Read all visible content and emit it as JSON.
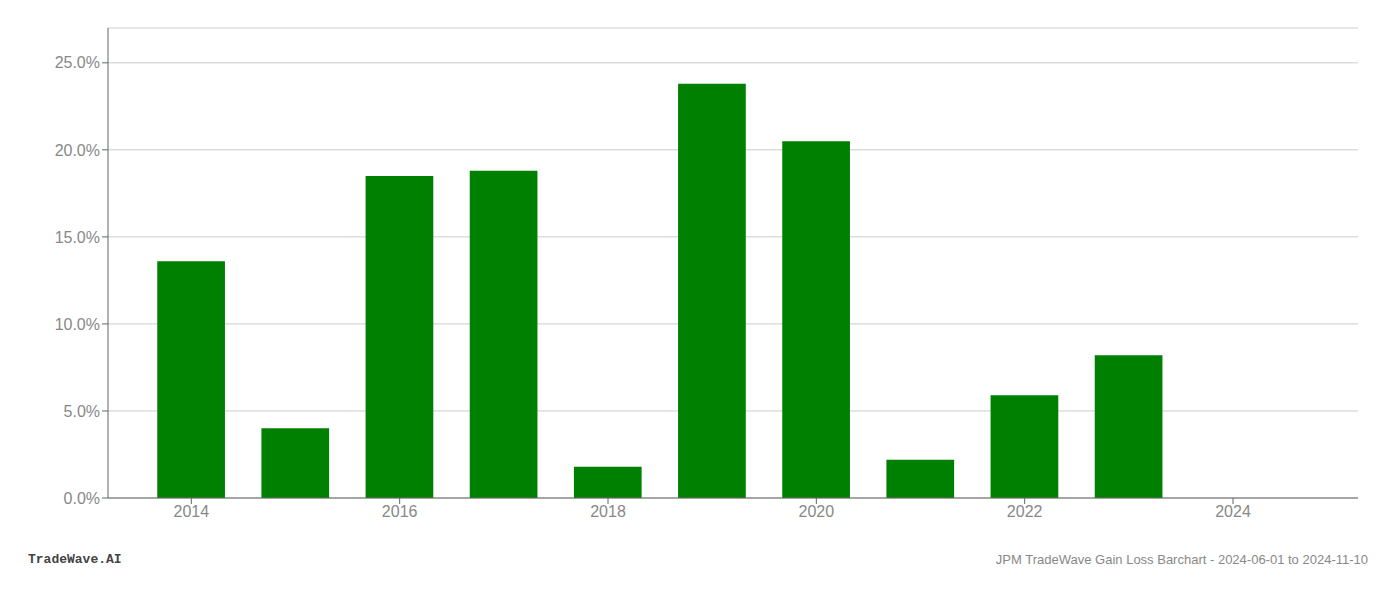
{
  "chart_data": {
    "type": "bar",
    "x": [
      2014,
      2015,
      2016,
      2017,
      2018,
      2019,
      2020,
      2021,
      2022,
      2023,
      2024
    ],
    "values": [
      0.136,
      0.04,
      0.185,
      0.188,
      0.018,
      0.238,
      0.205,
      0.022,
      0.059,
      0.082,
      0.0
    ],
    "color": "#008000",
    "xlim": [
      2013.2,
      2025.2
    ],
    "xticks": [
      2014,
      2016,
      2018,
      2020,
      2022,
      2024
    ],
    "ylim": [
      0,
      0.27
    ],
    "yticks": [
      {
        "value": 0.0,
        "label": "0.0%"
      },
      {
        "value": 0.05,
        "label": "5.0%"
      },
      {
        "value": 0.1,
        "label": "10.0%"
      },
      {
        "value": 0.15,
        "label": "15.0%"
      },
      {
        "value": 0.2,
        "label": "20.0%"
      },
      {
        "value": 0.25,
        "label": "25.0%"
      }
    ],
    "grid": true,
    "annotations": [
      "TradeWave.AI",
      "JPM TradeWave Gain Loss Barchart - 2024-06-01 to 2024-11-10"
    ]
  }
}
